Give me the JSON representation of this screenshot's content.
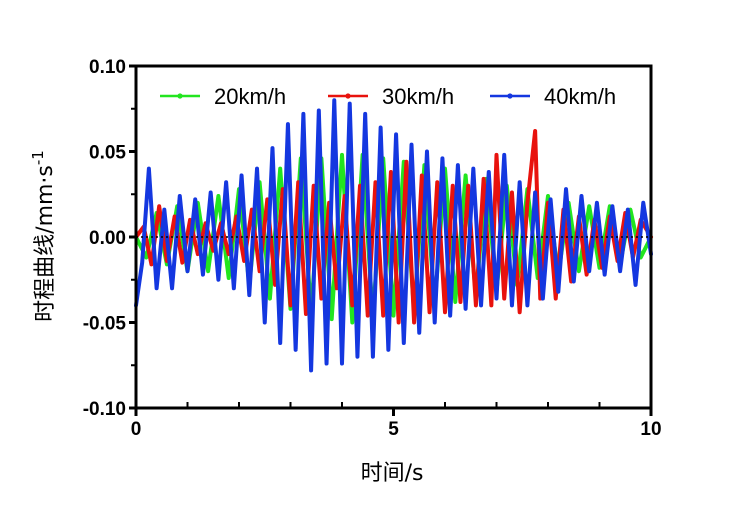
{
  "chart_data": {
    "type": "line",
    "xlabel": "时间/s",
    "ylabel": "时程曲线/mm·s",
    "ylabel_superscript": "-1",
    "xlim": [
      0,
      10
    ],
    "ylim": [
      -0.1,
      0.1
    ],
    "x_ticks": [
      "0",
      "5",
      "10"
    ],
    "y_ticks": [
      "0.10",
      "0.05",
      "0.00",
      "-0.05",
      "-0.10"
    ],
    "grid": false,
    "zero_line": "dotted",
    "legend_position": "top",
    "series": [
      {
        "name": "20km/h",
        "color": "#22e51f",
        "points": [
          [
            0,
            0.0
          ],
          [
            0.2,
            -0.012
          ],
          [
            0.4,
            0.014
          ],
          [
            0.6,
            -0.016
          ],
          [
            0.8,
            0.018
          ],
          [
            1.0,
            -0.02
          ],
          [
            1.2,
            0.02
          ],
          [
            1.4,
            -0.02
          ],
          [
            1.6,
            0.024
          ],
          [
            1.8,
            -0.024
          ],
          [
            2.0,
            0.028
          ],
          [
            2.2,
            -0.028
          ],
          [
            2.4,
            0.032
          ],
          [
            2.6,
            -0.036
          ],
          [
            2.8,
            0.04
          ],
          [
            3.0,
            -0.042
          ],
          [
            3.2,
            0.046
          ],
          [
            3.4,
            -0.045
          ],
          [
            3.6,
            0.046
          ],
          [
            3.8,
            -0.048
          ],
          [
            4.0,
            0.048
          ],
          [
            4.2,
            -0.05
          ],
          [
            4.4,
            0.048
          ],
          [
            4.6,
            -0.048
          ],
          [
            4.8,
            0.046
          ],
          [
            5.0,
            -0.046
          ],
          [
            5.2,
            0.044
          ],
          [
            5.4,
            -0.044
          ],
          [
            5.6,
            0.042
          ],
          [
            5.8,
            -0.04
          ],
          [
            6.0,
            0.04
          ],
          [
            6.2,
            -0.038
          ],
          [
            6.4,
            0.036
          ],
          [
            6.6,
            -0.035
          ],
          [
            6.8,
            0.034
          ],
          [
            7.0,
            -0.032
          ],
          [
            7.2,
            0.03
          ],
          [
            7.4,
            -0.028
          ],
          [
            7.6,
            0.028
          ],
          [
            7.8,
            -0.024
          ],
          [
            8.0,
            0.024
          ],
          [
            8.2,
            -0.022
          ],
          [
            8.4,
            0.02
          ],
          [
            8.6,
            -0.02
          ],
          [
            8.8,
            0.018
          ],
          [
            9.0,
            -0.018
          ],
          [
            9.2,
            0.018
          ],
          [
            9.4,
            -0.016
          ],
          [
            9.6,
            0.016
          ],
          [
            9.8,
            -0.012
          ],
          [
            10.0,
            0.0
          ]
        ]
      },
      {
        "name": "30km/h",
        "color": "#e8120d",
        "points": [
          [
            0,
            0.0
          ],
          [
            0.15,
            0.006
          ],
          [
            0.3,
            -0.016
          ],
          [
            0.45,
            0.018
          ],
          [
            0.6,
            -0.014
          ],
          [
            0.75,
            0.012
          ],
          [
            0.9,
            -0.015
          ],
          [
            1.05,
            0.01
          ],
          [
            1.2,
            -0.01
          ],
          [
            1.35,
            0.008
          ],
          [
            1.5,
            -0.008
          ],
          [
            1.65,
            0.008
          ],
          [
            1.8,
            -0.01
          ],
          [
            1.95,
            0.012
          ],
          [
            2.1,
            -0.014
          ],
          [
            2.25,
            0.016
          ],
          [
            2.4,
            -0.02
          ],
          [
            2.55,
            0.022
          ],
          [
            2.7,
            -0.028
          ],
          [
            2.85,
            0.028
          ],
          [
            3.0,
            -0.04
          ],
          [
            3.15,
            0.032
          ],
          [
            3.3,
            -0.045
          ],
          [
            3.45,
            0.03
          ],
          [
            3.6,
            -0.036
          ],
          [
            3.75,
            0.02
          ],
          [
            3.9,
            -0.03
          ],
          [
            4.05,
            0.024
          ],
          [
            4.2,
            -0.04
          ],
          [
            4.35,
            0.03
          ],
          [
            4.5,
            -0.046
          ],
          [
            4.65,
            0.032
          ],
          [
            4.8,
            -0.046
          ],
          [
            4.95,
            0.038
          ],
          [
            5.1,
            -0.05
          ],
          [
            5.25,
            0.044
          ],
          [
            5.4,
            -0.05
          ],
          [
            5.55,
            0.036
          ],
          [
            5.7,
            -0.044
          ],
          [
            5.85,
            0.032
          ],
          [
            6.0,
            -0.044
          ],
          [
            6.15,
            0.03
          ],
          [
            6.3,
            -0.038
          ],
          [
            6.45,
            0.03
          ],
          [
            6.6,
            -0.04
          ],
          [
            6.75,
            0.034
          ],
          [
            6.9,
            -0.04
          ],
          [
            7.0,
            0.048
          ],
          [
            7.15,
            -0.036
          ],
          [
            7.3,
            0.026
          ],
          [
            7.45,
            -0.044
          ],
          [
            7.6,
            0.02
          ],
          [
            7.75,
            0.062
          ],
          [
            7.85,
            -0.036
          ],
          [
            8.0,
            0.02
          ],
          [
            8.15,
            -0.036
          ],
          [
            8.3,
            0.016
          ],
          [
            8.45,
            -0.026
          ],
          [
            8.6,
            0.012
          ],
          [
            8.75,
            -0.022
          ],
          [
            8.9,
            0.01
          ],
          [
            9.05,
            -0.018
          ],
          [
            9.2,
            0.012
          ],
          [
            9.35,
            -0.014
          ],
          [
            9.5,
            0.014
          ],
          [
            9.65,
            -0.012
          ],
          [
            9.8,
            0.01
          ],
          [
            10.0,
            0.0
          ]
        ]
      },
      {
        "name": "40km/h",
        "color": "#1437e0",
        "points": [
          [
            0,
            -0.04
          ],
          [
            0.12,
            -0.015
          ],
          [
            0.25,
            0.04
          ],
          [
            0.4,
            -0.03
          ],
          [
            0.55,
            0.016
          ],
          [
            0.7,
            -0.03
          ],
          [
            0.85,
            0.024
          ],
          [
            1.0,
            -0.02
          ],
          [
            1.15,
            0.022
          ],
          [
            1.3,
            -0.022
          ],
          [
            1.45,
            0.026
          ],
          [
            1.6,
            -0.025
          ],
          [
            1.75,
            0.032
          ],
          [
            1.9,
            -0.03
          ],
          [
            2.05,
            0.036
          ],
          [
            2.2,
            -0.034
          ],
          [
            2.35,
            0.04
          ],
          [
            2.5,
            -0.05
          ],
          [
            2.65,
            0.052
          ],
          [
            2.8,
            -0.062
          ],
          [
            2.95,
            0.066
          ],
          [
            3.1,
            -0.066
          ],
          [
            3.25,
            0.072
          ],
          [
            3.4,
            -0.078
          ],
          [
            3.55,
            0.074
          ],
          [
            3.7,
            -0.074
          ],
          [
            3.85,
            0.08
          ],
          [
            4.0,
            -0.074
          ],
          [
            4.15,
            0.078
          ],
          [
            4.3,
            -0.07
          ],
          [
            4.45,
            0.072
          ],
          [
            4.6,
            -0.07
          ],
          [
            4.75,
            0.064
          ],
          [
            4.9,
            -0.066
          ],
          [
            5.05,
            0.06
          ],
          [
            5.2,
            -0.062
          ],
          [
            5.35,
            0.054
          ],
          [
            5.5,
            -0.056
          ],
          [
            5.65,
            0.05
          ],
          [
            5.8,
            -0.05
          ],
          [
            5.95,
            0.046
          ],
          [
            6.1,
            -0.046
          ],
          [
            6.25,
            0.042
          ],
          [
            6.4,
            -0.042
          ],
          [
            6.55,
            0.04
          ],
          [
            6.7,
            -0.04
          ],
          [
            6.85,
            0.038
          ],
          [
            7.0,
            -0.036
          ],
          [
            7.15,
            0.048
          ],
          [
            7.3,
            -0.04
          ],
          [
            7.45,
            0.032
          ],
          [
            7.6,
            -0.04
          ],
          [
            7.75,
            0.026
          ],
          [
            7.9,
            -0.036
          ],
          [
            8.05,
            0.022
          ],
          [
            8.2,
            -0.032
          ],
          [
            8.35,
            0.028
          ],
          [
            8.5,
            -0.026
          ],
          [
            8.65,
            0.024
          ],
          [
            8.8,
            -0.02
          ],
          [
            8.95,
            0.02
          ],
          [
            9.1,
            -0.022
          ],
          [
            9.25,
            0.018
          ],
          [
            9.4,
            -0.02
          ],
          [
            9.55,
            0.016
          ],
          [
            9.7,
            -0.028
          ],
          [
            9.85,
            0.02
          ],
          [
            10.0,
            -0.01
          ]
        ]
      }
    ]
  }
}
